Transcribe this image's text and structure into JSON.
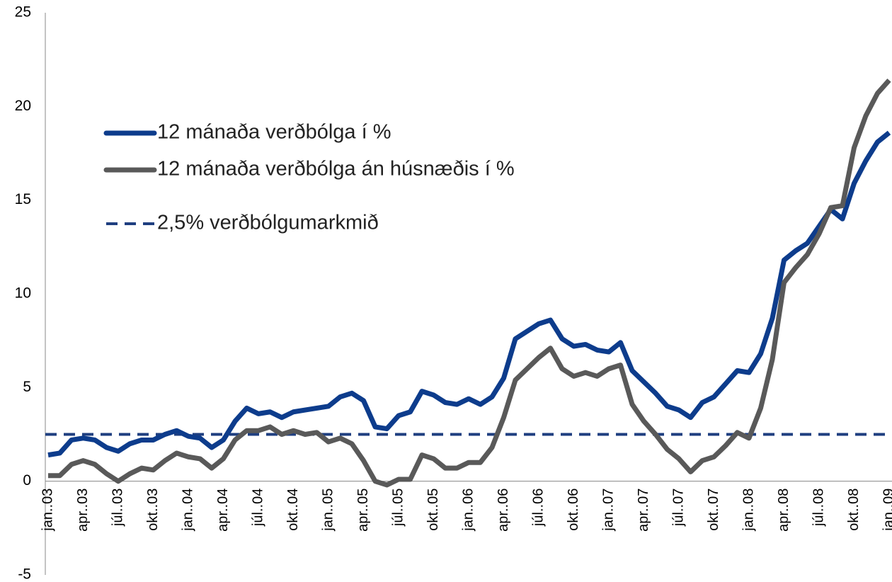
{
  "chart_data": {
    "type": "line",
    "categories": [
      "jan..03",
      null,
      null,
      "apr..03",
      null,
      null,
      "júl..03",
      null,
      null,
      "okt..03",
      null,
      null,
      "jan..04",
      null,
      null,
      "apr..04",
      null,
      null,
      "júl..04",
      null,
      null,
      "okt..04",
      null,
      null,
      "jan..05",
      null,
      null,
      "apr..05",
      null,
      null,
      "júl..05",
      null,
      null,
      "okt..05",
      null,
      null,
      "jan..06",
      null,
      null,
      "apr..06",
      null,
      null,
      "júl..06",
      null,
      null,
      "okt..06",
      null,
      null,
      "jan..07",
      null,
      null,
      "apr..07",
      null,
      null,
      "júl..07",
      null,
      null,
      "okt..07",
      null,
      null,
      "jan..08",
      null,
      null,
      "apr..08",
      null,
      null,
      "júl..08",
      null,
      null,
      "okt..08",
      null,
      null,
      "jan..09"
    ],
    "series": [
      {
        "name": "12 mánaða verðbólga í %",
        "color": "#0d3c8c",
        "values": [
          1.4,
          1.5,
          2.2,
          2.3,
          2.2,
          1.8,
          1.6,
          2.0,
          2.2,
          2.2,
          2.5,
          2.7,
          2.4,
          2.3,
          1.8,
          2.2,
          3.2,
          3.9,
          3.6,
          3.7,
          3.4,
          3.7,
          3.8,
          3.9,
          4.0,
          4.5,
          4.7,
          4.3,
          2.9,
          2.8,
          3.5,
          3.7,
          4.8,
          4.6,
          4.2,
          4.1,
          4.4,
          4.1,
          4.5,
          5.5,
          7.6,
          8.0,
          8.4,
          8.6,
          7.6,
          7.2,
          7.3,
          7.0,
          6.9,
          7.4,
          5.9,
          5.3,
          4.7,
          4.0,
          3.8,
          3.4,
          4.2,
          4.5,
          5.2,
          5.9,
          5.8,
          6.8,
          8.7,
          11.8,
          12.3,
          12.7,
          13.6,
          14.5,
          14.0,
          15.9,
          17.1,
          18.1,
          18.6
        ]
      },
      {
        "name": "12 mánaða verðbólga án húsnæðis í %",
        "color": "#595959",
        "values": [
          0.3,
          0.3,
          0.9,
          1.1,
          0.9,
          0.4,
          0.0,
          0.4,
          0.7,
          0.6,
          1.1,
          1.5,
          1.3,
          1.2,
          0.7,
          1.2,
          2.2,
          2.7,
          2.7,
          2.9,
          2.5,
          2.7,
          2.5,
          2.6,
          2.1,
          2.3,
          2.0,
          1.1,
          0.0,
          -0.2,
          0.1,
          0.1,
          1.4,
          1.2,
          0.7,
          0.7,
          1.0,
          1.0,
          1.8,
          3.4,
          5.4,
          6.0,
          6.6,
          7.1,
          6.0,
          5.6,
          5.8,
          5.6,
          6.0,
          6.2,
          4.1,
          3.2,
          2.5,
          1.7,
          1.2,
          0.5,
          1.1,
          1.3,
          1.9,
          2.6,
          2.3,
          3.9,
          6.5,
          10.6,
          11.4,
          12.1,
          13.2,
          14.6,
          14.7,
          17.8,
          19.5,
          20.7,
          21.4
        ]
      }
    ],
    "reference_line": {
      "name": "2,5% verðbólgumarkmið",
      "value": 2.5,
      "color": "#1f3f80",
      "dashed": true
    },
    "ylim": [
      -5,
      25
    ],
    "yticks": [
      -5,
      0,
      5,
      10,
      15,
      20,
      25
    ],
    "grid": false,
    "legend": "upper left"
  }
}
